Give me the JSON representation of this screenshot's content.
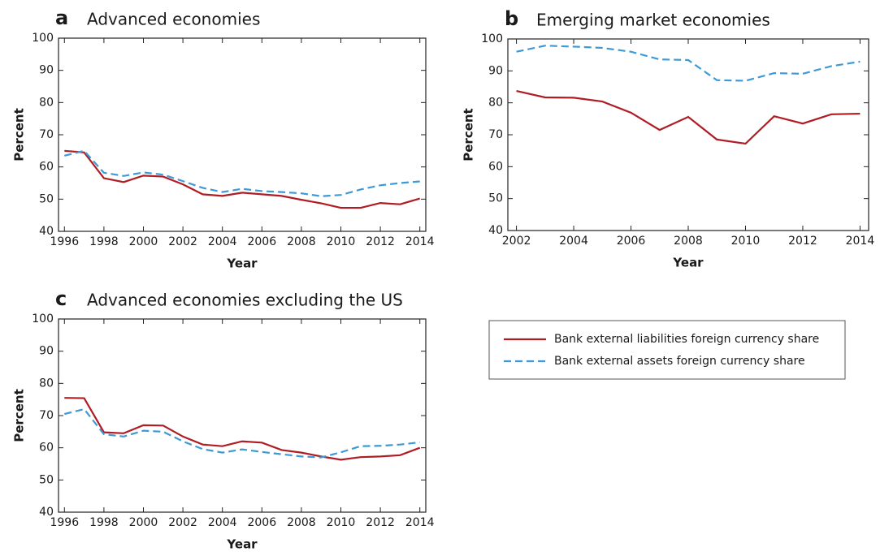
{
  "chart_data": [
    {
      "type": "line",
      "label": "a",
      "title": "Advanced economies",
      "xlabel": "Year",
      "ylabel": "Percent",
      "x": [
        1996,
        1997,
        1998,
        1999,
        2000,
        2001,
        2002,
        2003,
        2004,
        2005,
        2006,
        2007,
        2008,
        2009,
        2010,
        2011,
        2012,
        2013,
        2014
      ],
      "series": [
        {
          "name": "Bank external liabilities foreign currency share",
          "color": "#b01c24",
          "style": "solid",
          "values": [
            65,
            64.5,
            56.5,
            55.3,
            57.3,
            57,
            54.6,
            51.5,
            51,
            52,
            51.5,
            51,
            49.8,
            48.7,
            47.3,
            47.3,
            48.8,
            48.4,
            50.2
          ]
        },
        {
          "name": "Bank external assets foreign currency share",
          "color": "#3d9ad6",
          "style": "dashed",
          "values": [
            63.5,
            65,
            58.2,
            57.2,
            58.3,
            57.6,
            55.6,
            53.5,
            52.2,
            53.2,
            52.5,
            52.2,
            51.8,
            50.9,
            51.3,
            53,
            54.3,
            55,
            55.5
          ]
        }
      ],
      "xlim": [
        1995.7,
        2014.3
      ],
      "xticks": [
        1996,
        1998,
        2000,
        2002,
        2004,
        2006,
        2008,
        2010,
        2012,
        2014
      ],
      "ylim": [
        40,
        100
      ],
      "yticks": [
        40,
        50,
        60,
        70,
        80,
        90,
        100
      ]
    },
    {
      "type": "line",
      "label": "b",
      "title": "Emerging market economies",
      "xlabel": "Year",
      "ylabel": "Percent",
      "x": [
        2002,
        2003,
        2004,
        2005,
        2006,
        2007,
        2008,
        2009,
        2010,
        2011,
        2012,
        2013,
        2014
      ],
      "series": [
        {
          "color": "#b01c24",
          "style": "solid",
          "values": [
            83.7,
            81.7,
            81.6,
            80.4,
            76.9,
            71.5,
            75.6,
            68.5,
            67.2,
            75.8,
            73.5,
            76.4,
            76.6
          ]
        },
        {
          "color": "#3d9ad6",
          "style": "dashed",
          "values": [
            96,
            97.9,
            97.6,
            97.2,
            96,
            93.6,
            93.4,
            87.1,
            86.9,
            89.3,
            89.1,
            91.5,
            92.9
          ]
        }
      ],
      "xlim": [
        2001.7,
        2014.3
      ],
      "xticks": [
        2002,
        2004,
        2006,
        2008,
        2010,
        2012,
        2014
      ],
      "ylim": [
        40,
        100
      ],
      "yticks": [
        40,
        50,
        60,
        70,
        80,
        90,
        100
      ]
    },
    {
      "type": "line",
      "label": "c",
      "title": "Advanced economies excluding the US",
      "xlabel": "Year",
      "ylabel": "Percent",
      "x": [
        1996,
        1997,
        1998,
        1999,
        2000,
        2001,
        2002,
        2003,
        2004,
        2005,
        2006,
        2007,
        2008,
        2009,
        2010,
        2011,
        2012,
        2013,
        2014
      ],
      "series": [
        {
          "color": "#b01c24",
          "style": "solid",
          "values": [
            75.5,
            75.4,
            64.8,
            64.5,
            67,
            66.9,
            63.5,
            61,
            60.5,
            62,
            61.6,
            59.3,
            58.5,
            57.3,
            56.3,
            57.1,
            57.3,
            57.7,
            60
          ]
        },
        {
          "color": "#3d9ad6",
          "style": "dashed",
          "values": [
            70.5,
            72,
            64.2,
            63.5,
            65.3,
            65,
            62,
            59.6,
            58.5,
            59.5,
            58.7,
            58,
            57.3,
            57,
            58.6,
            60.5,
            60.6,
            61,
            61.7
          ]
        }
      ],
      "xlim": [
        1995.7,
        2014.3
      ],
      "xticks": [
        1996,
        1998,
        2000,
        2002,
        2004,
        2006,
        2008,
        2010,
        2012,
        2014
      ],
      "ylim": [
        40,
        100
      ],
      "yticks": [
        40,
        50,
        60,
        70,
        80,
        90,
        100
      ]
    }
  ]
}
